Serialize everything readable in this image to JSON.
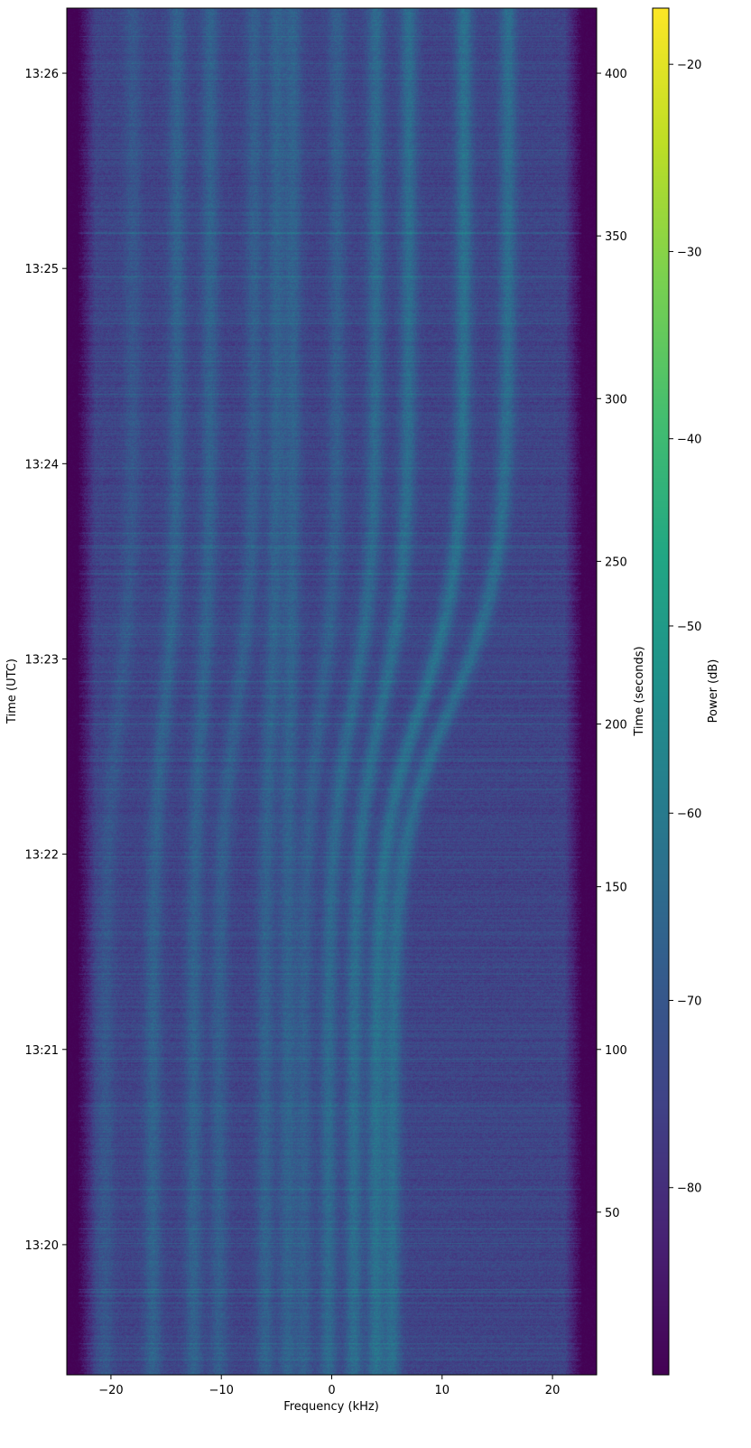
{
  "chart_data": {
    "type": "heatmap",
    "subtype": "spectrogram (waterfall)",
    "title": "",
    "xlabel": "Frequency (kHz)",
    "ylabel_left": "Time (UTC)",
    "ylabel_right": "Time (seconds)",
    "colorbar_label": "Power (dB)",
    "colormap": "viridis",
    "xlim": [
      -24,
      24
    ],
    "x_ticks": [
      -20,
      -10,
      0,
      10,
      20
    ],
    "y_seconds_lim": [
      0,
      420
    ],
    "y_seconds_ticks": [
      50,
      100,
      150,
      200,
      250,
      300,
      350,
      400
    ],
    "y_utc_ticks": [
      {
        "label": "13:20",
        "seconds": 40
      },
      {
        "label": "13:21",
        "seconds": 100
      },
      {
        "label": "13:22",
        "seconds": 160
      },
      {
        "label": "13:23",
        "seconds": 220
      },
      {
        "label": "13:24",
        "seconds": 280
      },
      {
        "label": "13:25",
        "seconds": 340
      },
      {
        "label": "13:26",
        "seconds": 400
      }
    ],
    "color_lim": [
      -90,
      -17
    ],
    "color_ticks": [
      -20,
      -30,
      -40,
      -50,
      -60,
      -70,
      -80
    ],
    "noise_floor_db": -75,
    "out_of_band_db": -90,
    "passband_khz": [
      -22.5,
      22
    ],
    "doppler_inflection_seconds": 205,
    "signal_lines": [
      {
        "kind": "left_group",
        "freq_start_khz": -20.5,
        "freq_end_khz": -18,
        "db": -70
      },
      {
        "kind": "left_group",
        "freq_start_khz": -16.2,
        "freq_end_khz": -14,
        "db": -67
      },
      {
        "kind": "left_group",
        "freq_start_khz": -12.5,
        "freq_end_khz": -11,
        "db": -67
      },
      {
        "kind": "left_group",
        "freq_start_khz": -10.2,
        "freq_end_khz": -7,
        "db": -68
      },
      {
        "kind": "left_group",
        "freq_start_khz": -6,
        "freq_end_khz": -5,
        "db": -67
      },
      {
        "kind": "left_group",
        "freq_start_khz": -4,
        "freq_end_khz": -3.5,
        "db": -67
      },
      {
        "kind": "right_group",
        "freq_start_khz": -2.5,
        "freq_end_khz": 0.5,
        "db": -68
      },
      {
        "kind": "right_group",
        "freq_start_khz": -0.3,
        "freq_end_khz": 4,
        "db": -65
      },
      {
        "kind": "right_group",
        "freq_start_khz": 2,
        "freq_end_khz": 7,
        "db": -64
      },
      {
        "kind": "right_group",
        "freq_start_khz": 4,
        "freq_end_khz": 12,
        "db": -63
      },
      {
        "kind": "right_group",
        "freq_start_khz": 5.5,
        "freq_end_khz": 16,
        "db": -64
      }
    ]
  }
}
